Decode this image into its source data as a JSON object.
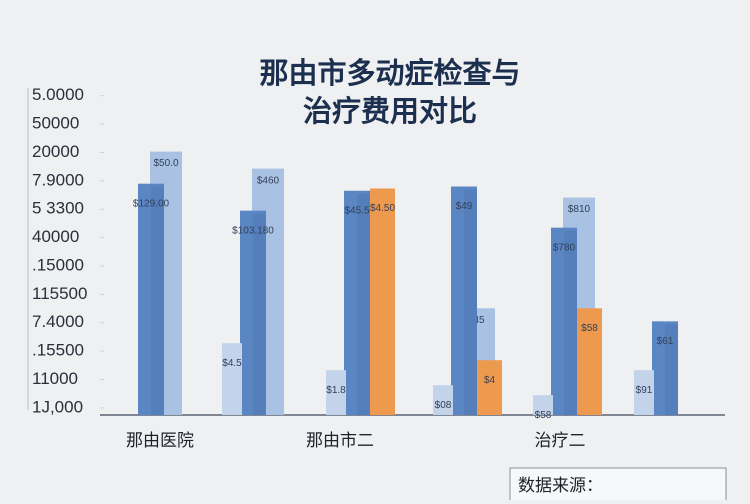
{
  "chart_data": {
    "type": "bar",
    "title": [
      "那由市多动症检查与",
      "治疗费用对比"
    ],
    "categories": [
      "那由医院",
      null,
      "那由市二",
      null,
      "治疗二",
      null
    ],
    "series": [
      {
        "color": "#c3d4ea",
        "values": [
          null,
          2.53,
          1.58,
          1.05,
          0.7,
          1.58
        ],
        "labels": [
          null,
          "$4.5",
          "$1.8",
          "$08",
          "$58",
          "$91"
        ]
      },
      {
        "color": "#a9c2e3",
        "values": [
          9.28,
          8.68,
          null,
          3.76,
          7.66,
          null
        ],
        "labels": [
          "$50.0",
          "$460",
          null,
          "45",
          "$810",
          null
        ]
      },
      {
        "color": "#5b86c4",
        "values": [
          8.15,
          7.2,
          7.9,
          8.05,
          6.6,
          3.3
        ],
        "labels": [
          "$129.00",
          "$103.180",
          "$45.5",
          "$49",
          "$780",
          "$61"
        ]
      },
      {
        "color": "#ee9a4e",
        "values": [
          null,
          null,
          7.98,
          1.93,
          3.76,
          null
        ],
        "labels": [
          null,
          null,
          "$4.50",
          "$4",
          "$58",
          null
        ]
      }
    ],
    "ylim": [
      0,
      11.75
    ],
    "yticks": [
      {
        "value": 0.25,
        "label": "1J,000"
      },
      {
        "value": 1.25,
        "label": "11000"
      },
      {
        "value": 2.25,
        "label": ".15500"
      },
      {
        "value": 3.25,
        "label": "7.4000"
      },
      {
        "value": 4.25,
        "label": "115500"
      },
      {
        "value": 5.25,
        "label": ".15000"
      },
      {
        "value": 6.25,
        "label": "40000"
      },
      {
        "value": 7.25,
        "label": "5 3300"
      },
      {
        "value": 8.25,
        "label": "7.9000"
      },
      {
        "value": 9.25,
        "label": "20000"
      },
      {
        "value": 10.25,
        "label": "50000"
      },
      {
        "value": 11.25,
        "label": "5.0000"
      }
    ],
    "source": "数据来源："
  }
}
